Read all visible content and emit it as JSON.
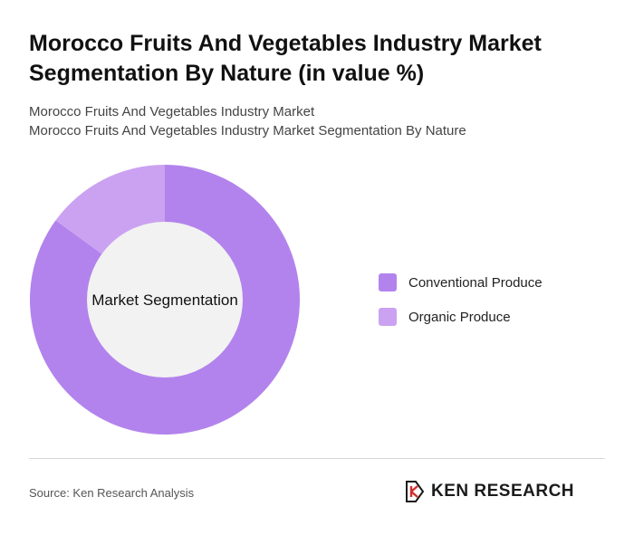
{
  "header": {
    "title": "Morocco Fruits And Vegetables Industry Market Segmentation By Nature (in value %)",
    "subtitle_line1": "Morocco Fruits And Vegetables Industry Market",
    "subtitle_line2": "Morocco Fruits And Vegetables Industry Market Segmentation By Nature"
  },
  "chart_data": {
    "type": "pie",
    "variant": "donut",
    "center_label": "Market Segmentation",
    "categories": [
      "Conventional Produce",
      "Organic Produce"
    ],
    "values": [
      85,
      15
    ],
    "colors": [
      "#b283ec",
      "#cba2f1"
    ],
    "legend_position": "right"
  },
  "footer": {
    "source": "Source: Ken Research Analysis",
    "brand": "KEN RESEARCH"
  },
  "colors": {
    "center_fill": "#f2f2f2",
    "divider": "#d9d9d9"
  }
}
